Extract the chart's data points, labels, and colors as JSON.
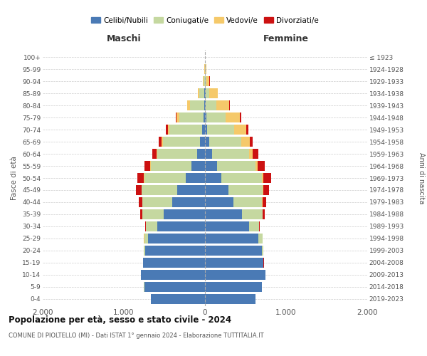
{
  "age_groups": [
    "0-4",
    "5-9",
    "10-14",
    "15-19",
    "20-24",
    "25-29",
    "30-34",
    "35-39",
    "40-44",
    "45-49",
    "50-54",
    "55-59",
    "60-64",
    "65-69",
    "70-74",
    "75-79",
    "80-84",
    "85-89",
    "90-94",
    "95-99",
    "100+"
  ],
  "birth_years": [
    "2019-2023",
    "2014-2018",
    "2009-2013",
    "2004-2008",
    "1999-2003",
    "1994-1998",
    "1989-1993",
    "1984-1988",
    "1979-1983",
    "1974-1978",
    "1969-1973",
    "1964-1968",
    "1959-1963",
    "1954-1958",
    "1949-1953",
    "1944-1948",
    "1939-1943",
    "1934-1938",
    "1929-1933",
    "1924-1928",
    "≤ 1923"
  ],
  "males_celibi": [
    670,
    750,
    790,
    760,
    740,
    700,
    590,
    510,
    400,
    340,
    240,
    170,
    100,
    60,
    35,
    20,
    12,
    8,
    3,
    1,
    0
  ],
  "males_coniugati": [
    1,
    1,
    1,
    4,
    15,
    50,
    135,
    260,
    370,
    440,
    510,
    500,
    490,
    460,
    400,
    300,
    170,
    65,
    15,
    3,
    1
  ],
  "males_vedovi": [
    0,
    0,
    0,
    0,
    0,
    1,
    1,
    1,
    2,
    2,
    4,
    6,
    8,
    13,
    22,
    28,
    35,
    15,
    6,
    2,
    1
  ],
  "males_divorziati": [
    0,
    0,
    0,
    1,
    1,
    4,
    8,
    25,
    45,
    65,
    80,
    70,
    55,
    35,
    22,
    13,
    4,
    2,
    1,
    0,
    0
  ],
  "females_nubili": [
    620,
    705,
    745,
    720,
    700,
    660,
    540,
    460,
    350,
    290,
    205,
    145,
    90,
    55,
    30,
    18,
    10,
    6,
    3,
    1,
    0
  ],
  "females_coniugate": [
    1,
    1,
    1,
    3,
    15,
    48,
    125,
    250,
    355,
    420,
    500,
    480,
    450,
    390,
    330,
    240,
    130,
    48,
    12,
    4,
    1
  ],
  "females_vedove": [
    0,
    0,
    0,
    0,
    0,
    1,
    1,
    2,
    3,
    6,
    12,
    26,
    52,
    105,
    150,
    175,
    160,
    105,
    42,
    12,
    2
  ],
  "females_divorziate": [
    0,
    0,
    0,
    1,
    1,
    4,
    8,
    22,
    48,
    70,
    98,
    88,
    62,
    40,
    22,
    13,
    4,
    2,
    1,
    0,
    0
  ],
  "colors": {
    "celibi": "#4a7ab5",
    "coniugati": "#c5d8a0",
    "vedovi": "#f5c96a",
    "divorziati": "#cc1111"
  },
  "title": "Popolazione per età, sesso e stato civile - 2024",
  "subtitle": "COMUNE DI PIOLTELLO (MI) - Dati ISTAT 1° gennaio 2024 - Elaborazione TUTTITALIA.IT",
  "xlabel_left": "Maschi",
  "xlabel_right": "Femmine",
  "ylabel_left": "Fasce di età",
  "ylabel_right": "Anni di nascita",
  "xticklabels": [
    "2.000",
    "1.000",
    "0",
    "1.000",
    "2.000"
  ],
  "legend_labels": [
    "Celibi/Nubili",
    "Coniugati/e",
    "Vedovi/e",
    "Divorziati/e"
  ],
  "background_color": "#ffffff"
}
